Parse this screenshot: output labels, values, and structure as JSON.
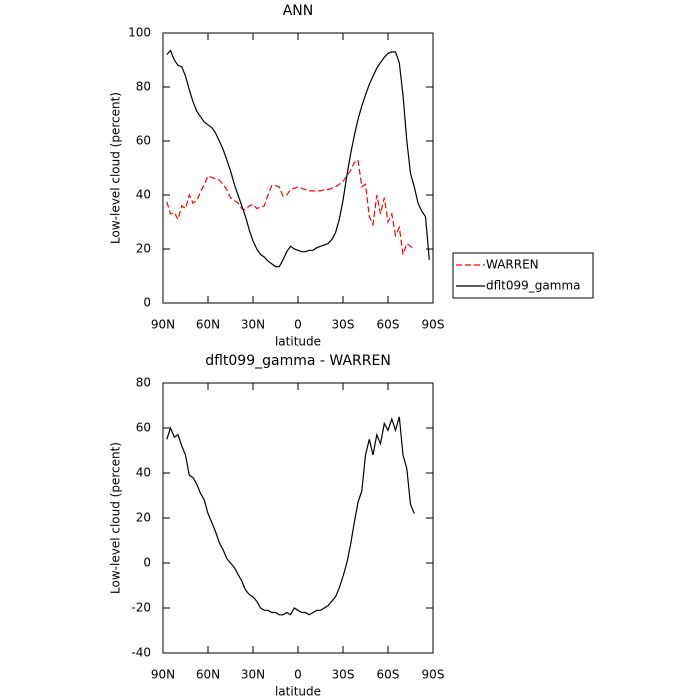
{
  "chart_data": [
    {
      "type": "line",
      "title": "ANN",
      "xlabel": "latitude",
      "ylabel": "Low-level cloud (percent)",
      "xlim": [
        90,
        -90
      ],
      "xticks": [
        {
          "value": 90,
          "label": "90N"
        },
        {
          "value": 60,
          "label": "60N"
        },
        {
          "value": 30,
          "label": "30N"
        },
        0,
        {
          "value": -30,
          "label": "30S"
        },
        {
          "value": -60,
          "label": "60S"
        },
        {
          "value": -90,
          "label": "90S"
        }
      ],
      "ylim": [
        0,
        100
      ],
      "yticks": [
        0,
        20,
        40,
        60,
        80,
        100
      ],
      "legend": "right",
      "x": [
        87.5,
        85,
        82.5,
        80,
        77.5,
        75,
        72.5,
        70,
        67.5,
        65,
        62.5,
        60,
        57.5,
        55,
        52.5,
        50,
        47.5,
        45,
        42.5,
        40,
        37.5,
        35,
        32.5,
        30,
        27.5,
        25,
        22.5,
        20,
        17.5,
        15,
        12.5,
        10,
        7.5,
        5,
        2.5,
        0,
        -2.5,
        -5,
        -7.5,
        -10,
        -12.5,
        -15,
        -17.5,
        -20,
        -22.5,
        -25,
        -27.5,
        -30,
        -32.5,
        -35,
        -37.5,
        -40,
        -42.5,
        -45,
        -47.5,
        -50,
        -52.5,
        -55,
        -57.5,
        -60,
        -62.5,
        -65,
        -67.5,
        -70,
        -72.5,
        -75,
        -77.5,
        -80,
        -82.5,
        -85,
        -87.5
      ],
      "series": [
        {
          "name": "WARREN",
          "color": "#ff0000",
          "linestyle": "dashed",
          "values": [
            37.5,
            33,
            33.5,
            31,
            36,
            35,
            40,
            37,
            38,
            41,
            44,
            47,
            46.5,
            46,
            45.5,
            44,
            42,
            39,
            38,
            37,
            35,
            34.5,
            36,
            36.5,
            35,
            35.5,
            36,
            40,
            43.5,
            43.5,
            43,
            39.5,
            40,
            42,
            42.5,
            43,
            42.5,
            42,
            41.5,
            41.5,
            41.5,
            41.5,
            42,
            42,
            42.5,
            43,
            44,
            45,
            47,
            49,
            52,
            53,
            43,
            44,
            32,
            29,
            40,
            33,
            39,
            30,
            33,
            25,
            28,
            18,
            22,
            21,
            20,
            null,
            null,
            null,
            null
          ]
        },
        {
          "name": "dflt099_gamma",
          "color": "#000000",
          "linestyle": "solid",
          "values": [
            92,
            93.5,
            90,
            88,
            87.5,
            84,
            79,
            74.5,
            71,
            69,
            67,
            66,
            65,
            63,
            60,
            57,
            53,
            49,
            44,
            40,
            36,
            32,
            27,
            23,
            20,
            18,
            17,
            15.5,
            14.5,
            13.5,
            13.5,
            16,
            19,
            21,
            20,
            19.5,
            19,
            19,
            19.5,
            19.5,
            20.5,
            21,
            21.5,
            22,
            23.5,
            26,
            31,
            38,
            47,
            55,
            62,
            68,
            73,
            77,
            81,
            84,
            87,
            89,
            91,
            92.5,
            93,
            93,
            89,
            77,
            60,
            48,
            43,
            37,
            34,
            32,
            16
          ]
        }
      ]
    },
    {
      "type": "line",
      "title": "dflt099_gamma - WARREN",
      "xlabel": "latitude",
      "ylabel": "Low-level cloud (percent)",
      "xlim": [
        90,
        -90
      ],
      "xticks": [
        {
          "value": 90,
          "label": "90N"
        },
        {
          "value": 60,
          "label": "60N"
        },
        {
          "value": 30,
          "label": "30N"
        },
        0,
        {
          "value": -30,
          "label": "30S"
        },
        {
          "value": -60,
          "label": "60S"
        },
        {
          "value": -90,
          "label": "90S"
        }
      ],
      "ylim": [
        -40,
        80
      ],
      "yticks": [
        -40,
        -20,
        0,
        20,
        40,
        60,
        80
      ],
      "x": [
        87.5,
        85,
        82.5,
        80,
        77.5,
        75,
        72.5,
        70,
        67.5,
        65,
        62.5,
        60,
        57.5,
        55,
        52.5,
        50,
        47.5,
        45,
        42.5,
        40,
        37.5,
        35,
        32.5,
        30,
        27.5,
        25,
        22.5,
        20,
        17.5,
        15,
        12.5,
        10,
        7.5,
        5,
        2.5,
        0,
        -2.5,
        -5,
        -7.5,
        -10,
        -12.5,
        -15,
        -17.5,
        -20,
        -22.5,
        -25,
        -27.5,
        -30,
        -32.5,
        -35,
        -37.5,
        -40,
        -42.5,
        -45,
        -47.5,
        -50,
        -52.5,
        -55,
        -57.5,
        -60,
        -62.5,
        -65,
        -67.5,
        -70,
        -72.5,
        -75,
        -77.5,
        -80,
        -82.5,
        -85,
        -87.5
      ],
      "series": [
        {
          "color": "#000000",
          "linestyle": "solid",
          "values": [
            55,
            60,
            56,
            57,
            52,
            48,
            39,
            38,
            35,
            31,
            28,
            22,
            18,
            14,
            9,
            6,
            2,
            0,
            -2,
            -5,
            -8,
            -12,
            -14,
            -15,
            -17,
            -20,
            -21,
            -21,
            -22,
            -22,
            -23,
            -23,
            -22,
            -23,
            -20,
            -21,
            -22,
            -22,
            -23,
            -22,
            -21,
            -21,
            -20,
            -19,
            -17,
            -15,
            -11,
            -6,
            0,
            8,
            18,
            27,
            32,
            48,
            55,
            48,
            57,
            53,
            62,
            59,
            64,
            59,
            65,
            48,
            42,
            26,
            22,
            null,
            null,
            null,
            null
          ]
        }
      ]
    }
  ]
}
